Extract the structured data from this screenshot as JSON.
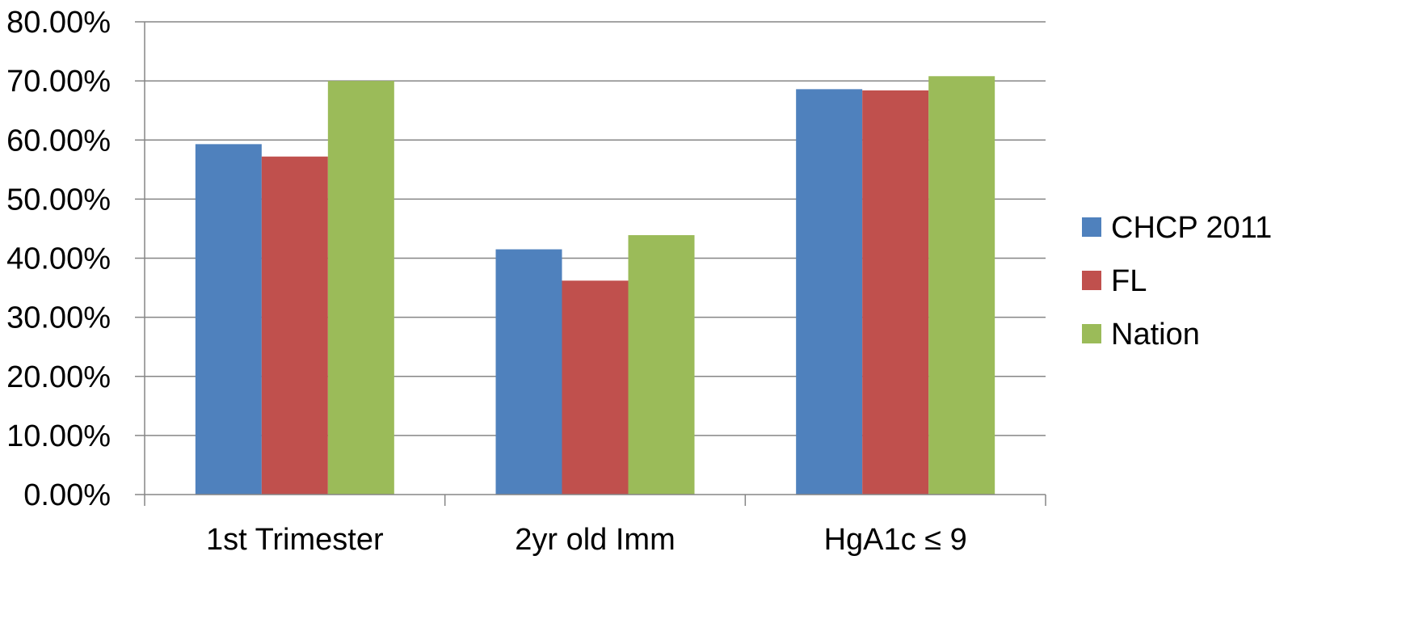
{
  "chart_data": {
    "type": "bar",
    "title": "",
    "xlabel": "",
    "ylabel": "",
    "categories": [
      "1st Trimester",
      "2yr old Imm",
      "HgA1c ≤ 9"
    ],
    "series": [
      {
        "name": "CHCP 2011",
        "color": "#4F81BD",
        "values": [
          59.3,
          41.5,
          68.6
        ]
      },
      {
        "name": "FL",
        "color": "#C0504D",
        "values": [
          57.2,
          36.2,
          68.4
        ]
      },
      {
        "name": "Nation",
        "color": "#9BBB59",
        "values": [
          70.0,
          43.9,
          70.8
        ]
      }
    ],
    "ylim": [
      0,
      80
    ],
    "yticks": [
      0,
      10,
      20,
      30,
      40,
      50,
      60,
      70,
      80
    ],
    "ytick_labels": [
      "0.00%",
      "10.00%",
      "20.00%",
      "30.00%",
      "40.00%",
      "50.00%",
      "60.00%",
      "70.00%",
      "80.00%"
    ],
    "grid": true,
    "legend_position": "right"
  },
  "colors": {
    "gridline": "#868686",
    "axis": "#868686",
    "text": "#000000"
  }
}
